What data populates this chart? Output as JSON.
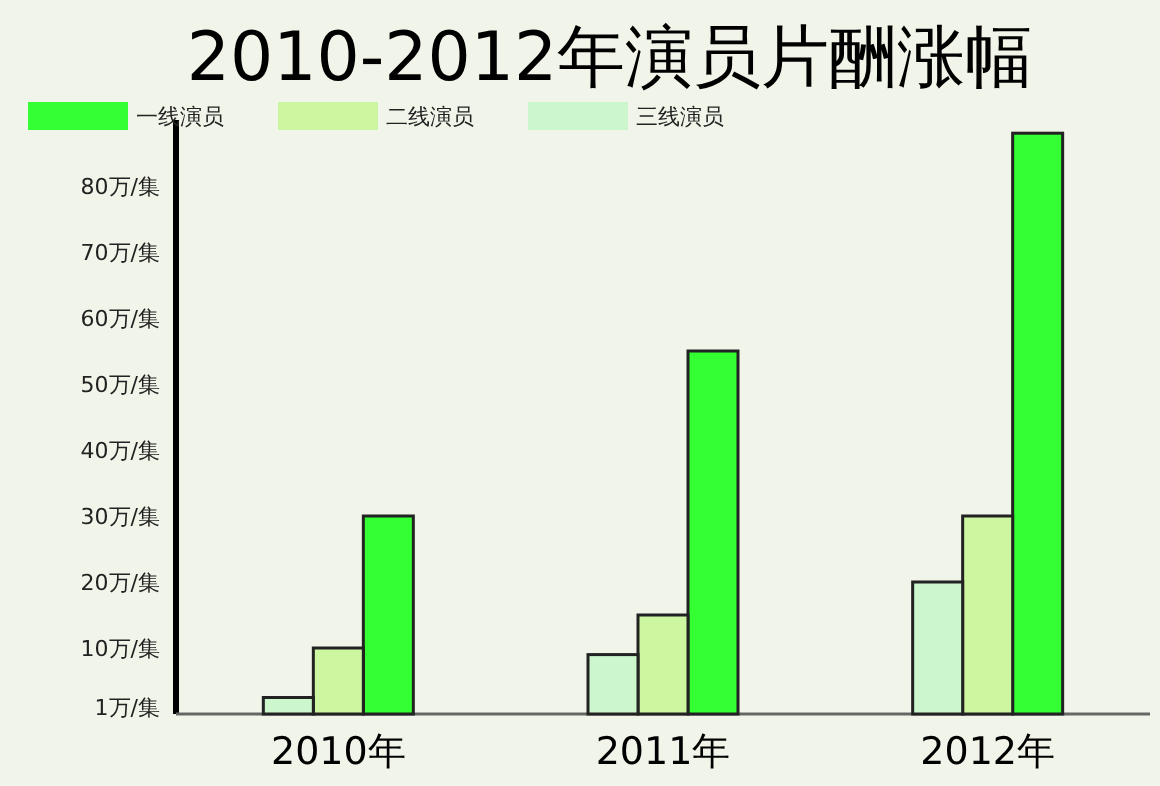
{
  "chart_data": {
    "type": "bar",
    "title": "2010-2012年演员片酬涨幅",
    "categories": [
      "2010年",
      "2011年",
      "2012年"
    ],
    "series": [
      {
        "name": "一线演员",
        "color": "#33ff33",
        "values": [
          30,
          55,
          88
        ]
      },
      {
        "name": "二线演员",
        "color": "#ccf7a0",
        "values": [
          10,
          15,
          30
        ]
      },
      {
        "name": "三线演员",
        "color": "#ccf7cc",
        "values": [
          2.5,
          9,
          20
        ]
      }
    ],
    "ylim": [
      0,
      90
    ],
    "yticks": [
      {
        "value": 1,
        "label": "1万/集"
      },
      {
        "value": 10,
        "label": "10万/集"
      },
      {
        "value": 20,
        "label": "20万/集"
      },
      {
        "value": 30,
        "label": "30万/集"
      },
      {
        "value": 40,
        "label": "40万/集"
      },
      {
        "value": 50,
        "label": "50万/集"
      },
      {
        "value": 60,
        "label": "60万/集"
      },
      {
        "value": 70,
        "label": "70万/集"
      },
      {
        "value": 80,
        "label": "80万/集"
      }
    ],
    "grid": false,
    "legend": "top left"
  }
}
